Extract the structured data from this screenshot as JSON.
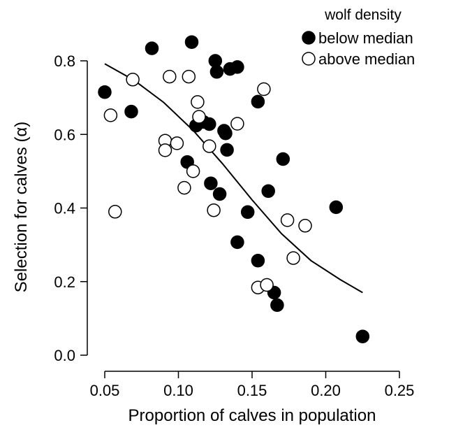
{
  "chart_data": {
    "type": "scatter",
    "xlabel": "Proportion of calves in population",
    "ylabel_text": "Selection for calves (",
    "ylabel_symbol": "α",
    "ylabel_close": ")",
    "xlim": [
      0.05,
      0.25
    ],
    "ylim": [
      0.0,
      0.8
    ],
    "x_ticks": [
      "0.05",
      "0.10",
      "0.15",
      "0.20",
      "0.25"
    ],
    "y_ticks": [
      "0.0",
      "0.2",
      "0.4",
      "0.6",
      "0.8"
    ],
    "grid": false,
    "legend": {
      "title": "wolf density",
      "placement": "top-right",
      "entries": [
        "below median",
        "above median"
      ]
    },
    "colors": {
      "marker": "#000000",
      "open_fill": "#ffffff"
    },
    "series": [
      {
        "name": "below median",
        "marker": "filled-circle",
        "points": [
          [
            0.05,
            0.715
          ],
          [
            0.068,
            0.662
          ],
          [
            0.082,
            0.834
          ],
          [
            0.106,
            0.525
          ],
          [
            0.109,
            0.851
          ],
          [
            0.112,
            0.624
          ],
          [
            0.117,
            0.634
          ],
          [
            0.121,
            0.628
          ],
          [
            0.122,
            0.467
          ],
          [
            0.125,
            0.8
          ],
          [
            0.126,
            0.77
          ],
          [
            0.128,
            0.438
          ],
          [
            0.131,
            0.61
          ],
          [
            0.132,
            0.603
          ],
          [
            0.133,
            0.558
          ],
          [
            0.135,
            0.778
          ],
          [
            0.14,
            0.307
          ],
          [
            0.14,
            0.783
          ],
          [
            0.147,
            0.389
          ],
          [
            0.154,
            0.689
          ],
          [
            0.154,
            0.257
          ],
          [
            0.161,
            0.446
          ],
          [
            0.165,
            0.17
          ],
          [
            0.167,
            0.136
          ],
          [
            0.171,
            0.533
          ],
          [
            0.207,
            0.402
          ],
          [
            0.225,
            0.051
          ]
        ]
      },
      {
        "name": "above median",
        "marker": "open-circle",
        "points": [
          [
            0.054,
            0.652
          ],
          [
            0.057,
            0.39
          ],
          [
            0.069,
            0.749
          ],
          [
            0.091,
            0.583
          ],
          [
            0.091,
            0.557
          ],
          [
            0.094,
            0.757
          ],
          [
            0.099,
            0.576
          ],
          [
            0.104,
            0.455
          ],
          [
            0.107,
            0.757
          ],
          [
            0.11,
            0.5
          ],
          [
            0.113,
            0.688
          ],
          [
            0.114,
            0.648
          ],
          [
            0.121,
            0.568
          ],
          [
            0.124,
            0.394
          ],
          [
            0.14,
            0.629
          ],
          [
            0.154,
            0.184
          ],
          [
            0.158,
            0.723
          ],
          [
            0.16,
            0.191
          ],
          [
            0.174,
            0.367
          ],
          [
            0.178,
            0.264
          ],
          [
            0.186,
            0.352
          ]
        ]
      },
      {
        "name": "",
        "type": "line",
        "points": [
          [
            0.05,
            0.792
          ],
          [
            0.07,
            0.747
          ],
          [
            0.09,
            0.687
          ],
          [
            0.11,
            0.611
          ],
          [
            0.13,
            0.52
          ],
          [
            0.15,
            0.422
          ],
          [
            0.17,
            0.33
          ],
          [
            0.19,
            0.257
          ],
          [
            0.21,
            0.205
          ],
          [
            0.225,
            0.17
          ]
        ]
      }
    ]
  }
}
